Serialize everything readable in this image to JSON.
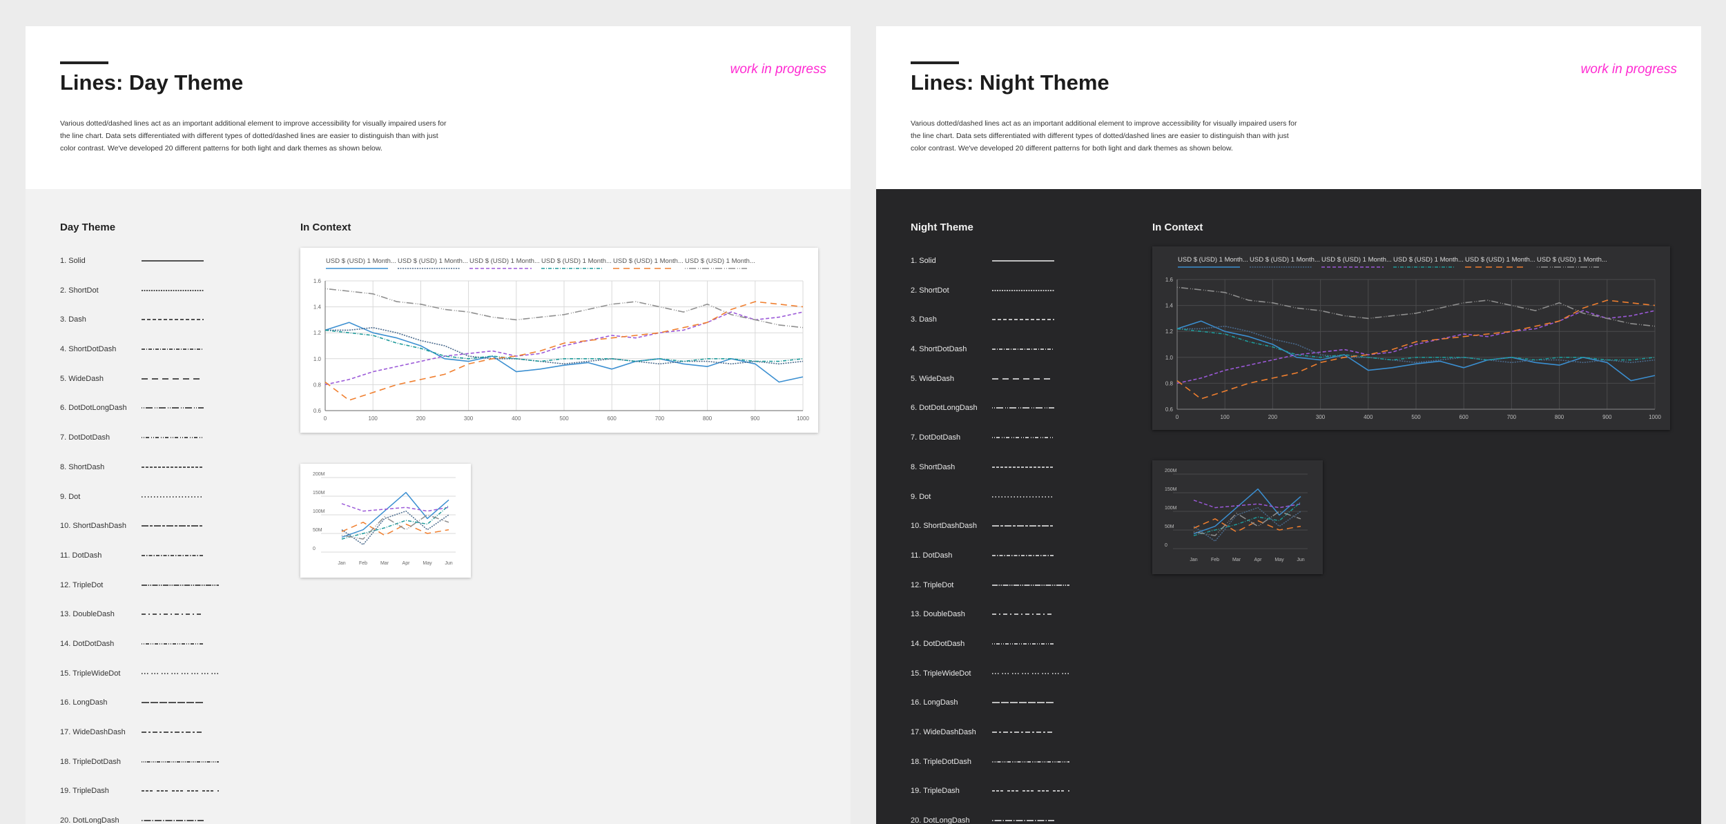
{
  "panels": [
    {
      "id": "day",
      "title": "Lines: Day Theme",
      "status": "work in progress",
      "description": "Various dotted/dashed lines act as an important additional element to improve accessibility for visually impaired users for the line chart. Data sets differentiated with different types of dotted/dashed lines are easier to distinguish than with just color contrast. We've developed 20 different patterns for both light and dark themes as shown below.",
      "styles_heading": "Day Theme",
      "context_heading": "In Context",
      "styles": [
        "1. Solid",
        "2. ShortDot",
        "3. Dash",
        "4. ShortDotDash",
        "5. WideDash",
        "6. DotDotLongDash",
        "7. DotDotDash",
        "8. ShortDash",
        "9. Dot",
        "10. ShortDashDash",
        "11. DotDash",
        "12. TripleDot",
        "13. DoubleDash",
        "14. DotDotDash",
        "15. TripleWideDot",
        "16. LongDash",
        "17. WideDashDash",
        "18. TripleDotDash",
        "19. TripleDash",
        "20.  DotLongDash"
      ]
    },
    {
      "id": "night",
      "title": "Lines: Night Theme",
      "status": "work in progress",
      "description": "Various dotted/dashed lines act as an important additional element to improve accessibility for visually impaired users for the line chart. Data sets differentiated with different types of dotted/dashed lines are easier to distinguish than with just color contrast. We've developed 20 different patterns for both light and dark themes as shown below.",
      "styles_heading": "Night Theme",
      "context_heading": "In Context",
      "styles": [
        "1. Solid",
        "2. ShortDot",
        "3. Dash",
        "4. ShortDotDash",
        "5. WideDash",
        "6. DotDotLongDash",
        "7. DotDotDash",
        "8. ShortDash",
        "9. Dot",
        "10. ShortDashDash",
        "11. DotDash",
        "12. TripleDot",
        "13. DoubleDash",
        "14. DotDotDash",
        "15. TripleWideDot",
        "16. LongDash",
        "17. WideDashDash",
        "18. TripleDotDash",
        "19. TripleDash",
        "20. DotLongDash"
      ]
    }
  ],
  "theme_colors": {
    "day": {
      "line": "#1b1b1b",
      "grid": "#d9d9d9",
      "axis": "#666666",
      "text": "#666666"
    },
    "night": {
      "line": "#f2f2f2",
      "grid": "#4a4a4c",
      "axis": "#8a8a8a",
      "text": "#bdbdbd"
    },
    "accent_wip": "#ff2bd2"
  },
  "chart_data": [
    {
      "type": "line",
      "xlim": [
        0,
        1000
      ],
      "ylim": [
        0.6,
        1.6
      ],
      "x_ticks": [
        0,
        100,
        200,
        300,
        400,
        500,
        600,
        700,
        800,
        900,
        1000
      ],
      "y_ticks": [
        0.6,
        0.8,
        1.0,
        1.2,
        1.4,
        1.6
      ],
      "x": [
        0,
        50,
        100,
        150,
        200,
        250,
        300,
        350,
        400,
        450,
        500,
        550,
        600,
        650,
        700,
        750,
        800,
        850,
        900,
        950,
        1000
      ],
      "series": [
        {
          "name": "USD $ (USD) 1 Month...",
          "color": "#3b8fd1",
          "dash": "solid",
          "values": [
            1.22,
            1.28,
            1.2,
            1.16,
            1.1,
            1.0,
            0.98,
            1.02,
            0.9,
            0.92,
            0.95,
            0.97,
            0.92,
            0.98,
            1.0,
            0.96,
            0.94,
            1.0,
            0.96,
            0.82,
            0.86
          ]
        },
        {
          "name": "USD $ (USD) 1 Month...",
          "color": "#4a6a8c",
          "dash": "shortdot",
          "values": [
            1.22,
            1.22,
            1.24,
            1.2,
            1.14,
            1.1,
            1.02,
            1.0,
            1.0,
            0.98,
            0.96,
            0.98,
            1.0,
            0.98,
            0.96,
            0.98,
            0.98,
            0.96,
            0.98,
            0.96,
            0.98
          ]
        },
        {
          "name": "USD $ (USD) 1 Month...",
          "color": "#9b59d8",
          "dash": "dash",
          "values": [
            0.8,
            0.84,
            0.9,
            0.94,
            0.98,
            1.02,
            1.04,
            1.06,
            1.02,
            1.04,
            1.1,
            1.14,
            1.18,
            1.16,
            1.2,
            1.22,
            1.28,
            1.36,
            1.3,
            1.32,
            1.36
          ]
        },
        {
          "name": "USD $ (USD) 1 Month...",
          "color": "#1e9a9a",
          "dash": "shortdotdash",
          "values": [
            1.22,
            1.2,
            1.18,
            1.12,
            1.08,
            1.02,
            1.0,
            1.02,
            1.0,
            0.98,
            1.0,
            1.0,
            1.0,
            0.98,
            1.0,
            0.98,
            1.0,
            1.0,
            0.98,
            0.98,
            1.0
          ]
        },
        {
          "name": "USD $ (USD) 1 Month...",
          "color": "#f07f2f",
          "dash": "widedash",
          "values": [
            0.82,
            0.68,
            0.74,
            0.8,
            0.84,
            0.88,
            0.96,
            1.0,
            1.02,
            1.06,
            1.12,
            1.14,
            1.16,
            1.18,
            1.2,
            1.24,
            1.28,
            1.38,
            1.44,
            1.42,
            1.4
          ]
        },
        {
          "name": "USD $ (USD) 1 Month...",
          "color": "#8f8f8f",
          "dash": "dotdotlongdash",
          "values": [
            1.54,
            1.52,
            1.5,
            1.44,
            1.42,
            1.38,
            1.36,
            1.32,
            1.3,
            1.32,
            1.34,
            1.38,
            1.42,
            1.44,
            1.4,
            1.36,
            1.42,
            1.34,
            1.3,
            1.26,
            1.24
          ]
        }
      ]
    },
    {
      "type": "line",
      "categories": [
        "Jan",
        "Feb",
        "Mar",
        "Apr",
        "May",
        "Jun"
      ],
      "y_ticks": [
        "0",
        "50M",
        "100M",
        "150M",
        "200M"
      ],
      "ylim": [
        0,
        200
      ],
      "series": [
        {
          "color": "#3b8fd1",
          "dash": "solid",
          "values": [
            40,
            60,
            110,
            160,
            90,
            140
          ]
        },
        {
          "color": "#4a6a8c",
          "dash": "shortdot",
          "values": [
            60,
            20,
            90,
            110,
            60,
            100
          ]
        },
        {
          "color": "#9b59d8",
          "dash": "dash",
          "values": [
            130,
            110,
            115,
            120,
            110,
            120
          ]
        },
        {
          "color": "#1e9a9a",
          "dash": "shortdotdash",
          "values": [
            35,
            50,
            65,
            85,
            75,
            125
          ]
        },
        {
          "color": "#f07f2f",
          "dash": "widedash",
          "values": [
            55,
            80,
            45,
            75,
            50,
            60
          ]
        },
        {
          "color": "#8f8f8f",
          "dash": "dotdotlongdash",
          "values": [
            45,
            35,
            95,
            60,
            100,
            80
          ]
        }
      ]
    }
  ]
}
